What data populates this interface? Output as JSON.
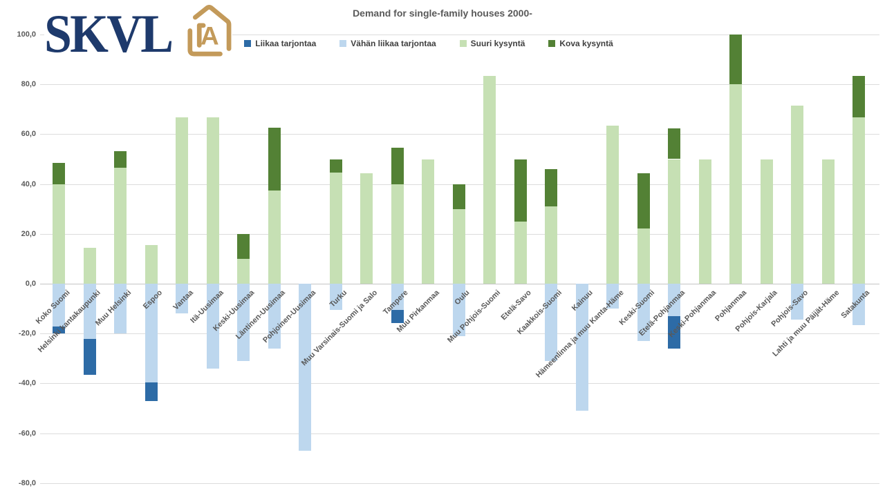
{
  "logo": {
    "text": "SKVL",
    "icon": "house-a-icon",
    "navy": "#1e3a6c",
    "gold": "#c39a5a"
  },
  "title": "Demand for single-family houses 2000-",
  "legend": [
    {
      "label": "Liikaa tarjontaa",
      "color": "#2d6ba6"
    },
    {
      "label": "Vähän liikaa tarjontaa",
      "color": "#bdd7ee"
    },
    {
      "label": "Suuri kysyntä",
      "color": "#c6e0b4"
    },
    {
      "label": "Kova kysyntä",
      "color": "#538135"
    }
  ],
  "chart_data": {
    "type": "bar",
    "stacked": true,
    "title": "Demand for single-family houses 2000-",
    "xlabel": "",
    "ylabel": "",
    "ylim": [
      -80,
      100
    ],
    "ytick_step": 20,
    "ytick_labels": [
      "100,0",
      "80,0",
      "60,0",
      "40,0",
      "20,0",
      "0,0",
      "-20,0",
      "-40,0",
      "-60,0",
      "-80,0"
    ],
    "grid": true,
    "legend_position": "top",
    "decimal_separator": ",",
    "categories": [
      "Koko Suomi",
      "Helsinki kantakaupunki",
      "Muu Helsinki",
      "Espoo",
      "Vantaa",
      "Itä-Uusimaa",
      "Keski-Uusimaa",
      "Läntinen-Uusimaa",
      "Pohjoinen-Uusimaa",
      "Turku",
      "Muu Varsinais-Suomi ja Salo",
      "Tampere",
      "Muu Pirkanmaa",
      "Oulu",
      "Muu Pohjois-Suomi",
      "Etelä-Savo",
      "Kaakkois-Suomi",
      "Kainuu",
      "Hämeenlinna ja muu Kanta-Häme",
      "Keski-Suomi",
      "Etelä-Pohjanmaa",
      "Keski-Pohjanmaa",
      "Pohjanmaa",
      "Pohjois-Karjala",
      "Pohjois-Savo",
      "Lahti ja muu Päijät-Häme",
      "Satakunta"
    ],
    "series": [
      {
        "name": "Liikaa tarjontaa",
        "color": "#2d6ba6",
        "values": [
          -2.9,
          -14.3,
          0,
          -7.5,
          0,
          0,
          0,
          0,
          0,
          0,
          0,
          -5.3,
          0,
          0,
          0,
          0,
          0,
          0,
          0,
          0,
          -13,
          0,
          0,
          0,
          0,
          0,
          0
        ]
      },
      {
        "name": "Vähän liikaa tarjontaa",
        "color": "#bdd7ee",
        "values": [
          -17.1,
          -22.2,
          -20,
          -39.5,
          -11.9,
          -34,
          -31,
          -26,
          -67,
          -10.5,
          0,
          -10.5,
          0,
          -21,
          0,
          0,
          -31,
          -51,
          -10,
          -23,
          -13,
          0,
          0,
          0,
          -14.3,
          0,
          -16.7
        ]
      },
      {
        "name": "Suuri kysyntä",
        "color": "#c6e0b4",
        "values": [
          40,
          14.3,
          46.5,
          15.4,
          66.7,
          66.7,
          10,
          37.5,
          0,
          44.5,
          44.4,
          40,
          50,
          30,
          83.3,
          25,
          31,
          0,
          63.3,
          22.2,
          50,
          50,
          80,
          50,
          71.4,
          50,
          66.7
        ]
      },
      {
        "name": "Kova kysyntä",
        "color": "#538135",
        "values": [
          8.6,
          0,
          6.8,
          0,
          0,
          0,
          10,
          25,
          0,
          5.5,
          0,
          14.5,
          0,
          10,
          0,
          25,
          15,
          0,
          0,
          22.2,
          12.3,
          0,
          20,
          0,
          0,
          0,
          16.7
        ]
      }
    ]
  }
}
